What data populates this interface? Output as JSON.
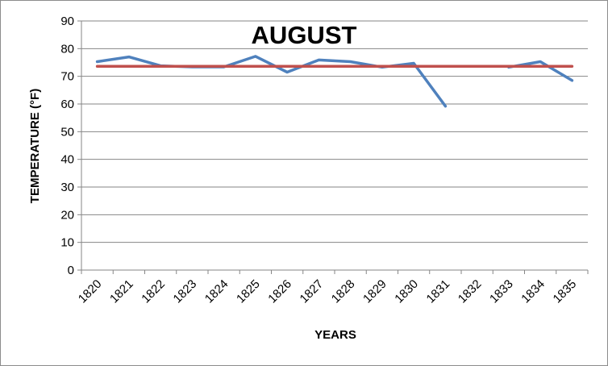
{
  "chart_data": {
    "type": "line",
    "title": "AUGUST",
    "xlabel": "YEARS",
    "ylabel": "TEMPERATURE (°F)",
    "ylim": [
      0,
      90
    ],
    "yticks": [
      0,
      10,
      20,
      30,
      40,
      50,
      60,
      70,
      80,
      90
    ],
    "grid": "horizontal",
    "legend": "none",
    "categories": [
      "1820",
      "1821",
      "1822",
      "1823",
      "1824",
      "1825",
      "1826",
      "1827",
      "1828",
      "1829",
      "1830",
      "1831",
      "1832",
      "1833",
      "1834",
      "1835"
    ],
    "series": [
      {
        "values": [
          75.3,
          77.0,
          73.8,
          73.4,
          73.4,
          77.2,
          71.5,
          75.9,
          75.3,
          73.3,
          74.7,
          59.2,
          null,
          73.3,
          75.3,
          68.5
        ],
        "color": "#4f81bd"
      },
      {
        "values": [
          73.6,
          73.6,
          73.6,
          73.6,
          73.6,
          73.6,
          73.6,
          73.6,
          73.6,
          73.6,
          73.6,
          73.6,
          73.6,
          73.6,
          73.6,
          73.6
        ],
        "color": "#c0504d"
      }
    ]
  }
}
